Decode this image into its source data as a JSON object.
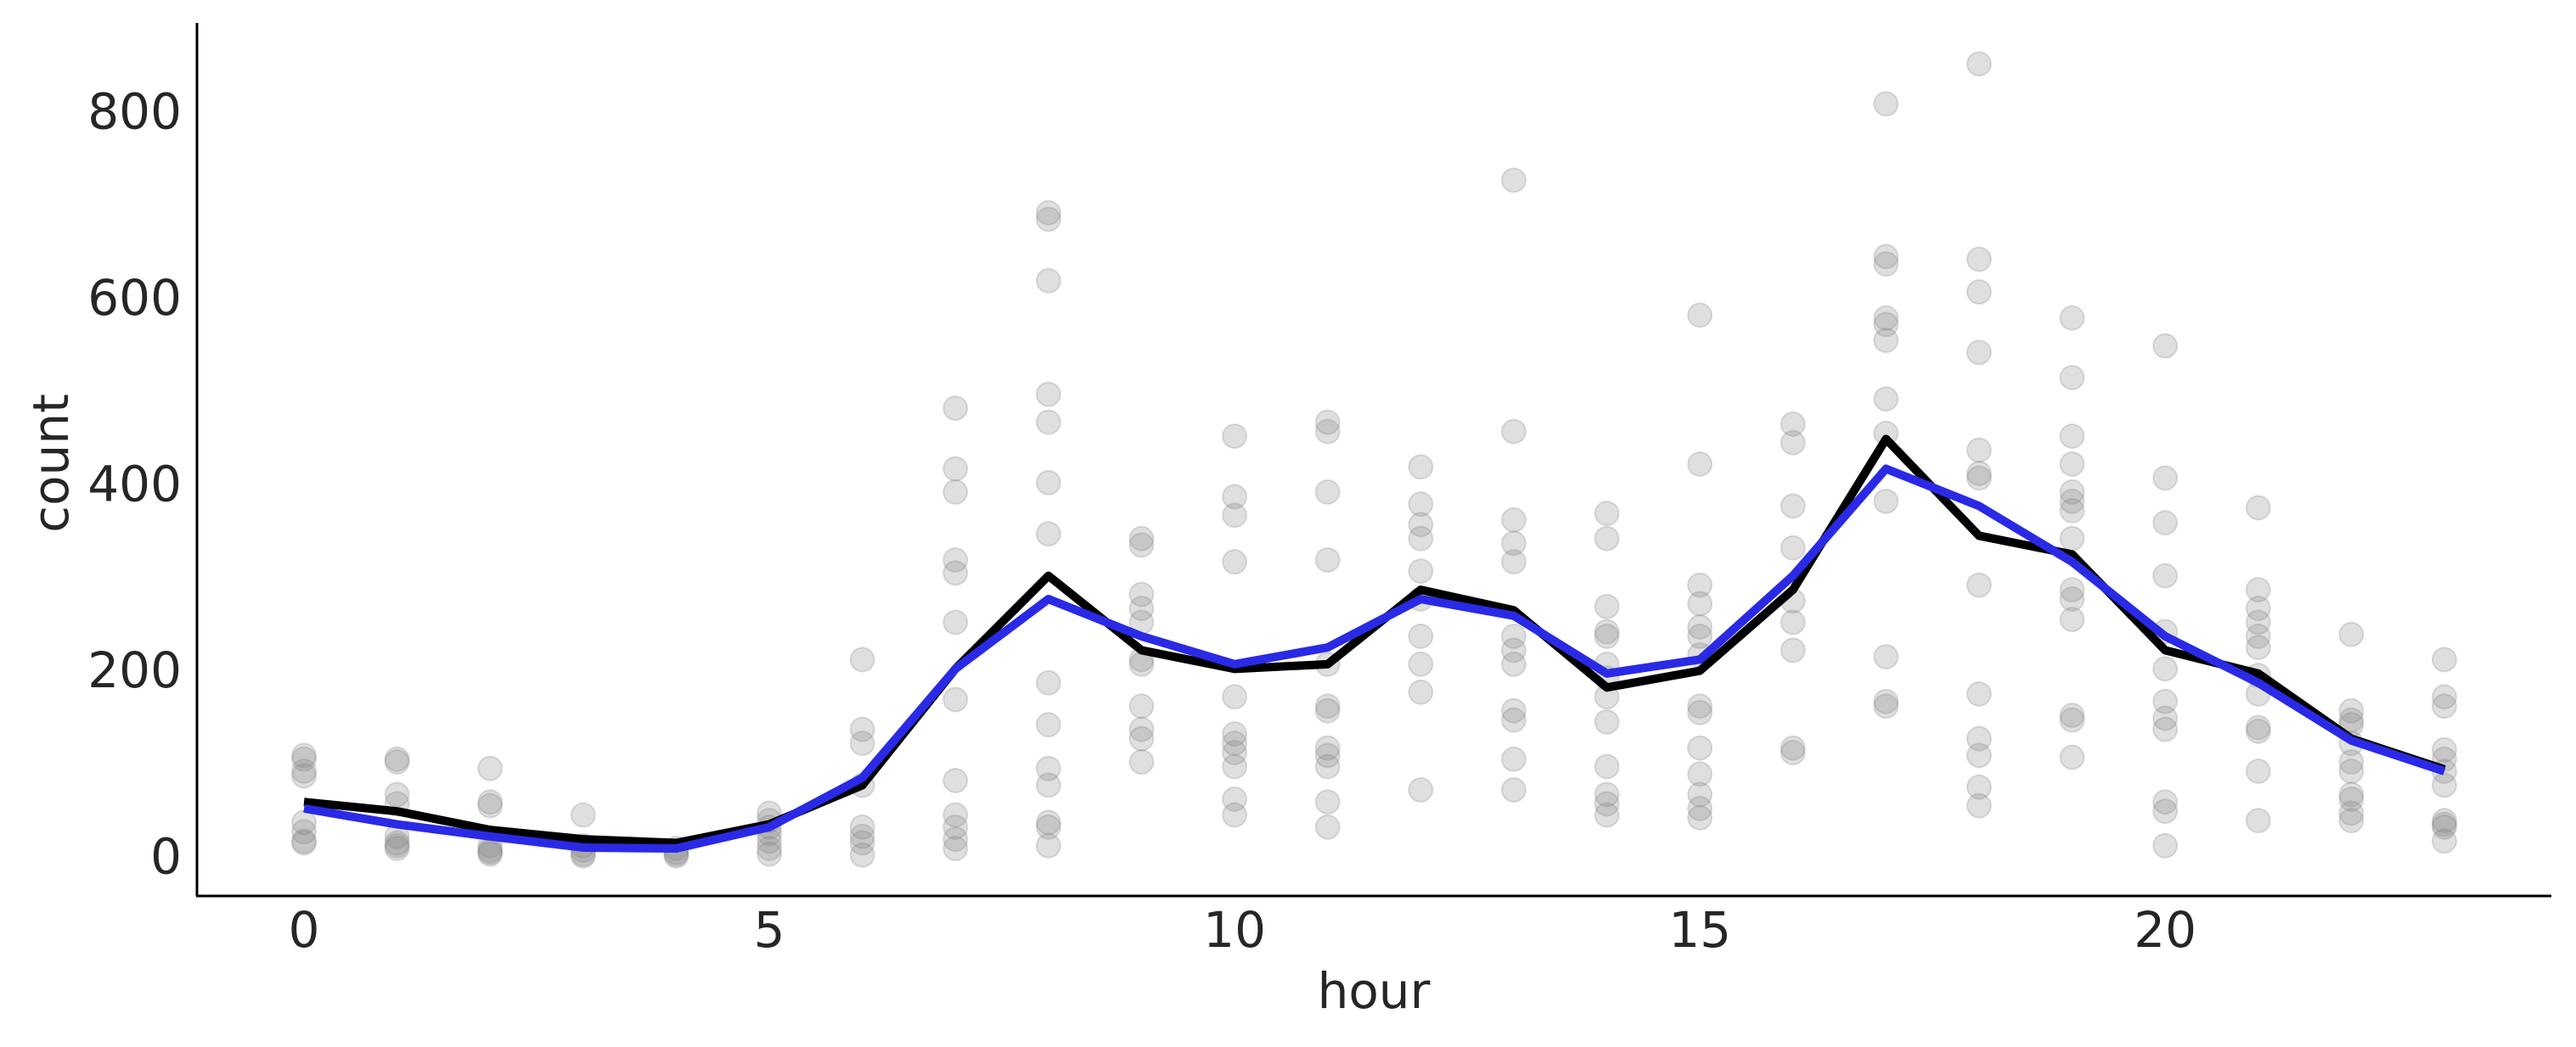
{
  "chart_data": {
    "type": "scatter",
    "x_label": "hour",
    "y_label": "count",
    "xlim": [
      -1.15,
      24.15
    ],
    "ylim": [
      -39,
      899
    ],
    "xticks": [
      0,
      5,
      10,
      15,
      20
    ],
    "yticks": [
      0,
      200,
      400,
      600,
      800
    ],
    "grid": false,
    "series": [
      {
        "type": "scatter",
        "color": "#808080",
        "x": [
          0,
          0,
          0,
          0,
          0,
          0,
          0,
          0,
          1,
          1,
          1,
          1,
          1,
          1,
          1,
          1,
          2,
          2,
          2,
          2,
          2,
          2,
          2,
          3,
          3,
          3,
          3,
          3,
          4,
          4,
          4,
          4,
          5,
          5,
          5,
          5,
          5,
          5,
          5,
          6,
          6,
          6,
          6,
          6,
          6,
          6,
          6,
          7,
          7,
          7,
          7,
          7,
          7,
          7,
          7,
          7,
          7,
          7,
          7,
          8,
          8,
          8,
          8,
          8,
          8,
          8,
          8,
          8,
          8,
          8,
          8,
          8,
          8,
          9,
          9,
          9,
          9,
          9,
          9,
          9,
          9,
          9,
          9,
          9,
          10,
          10,
          10,
          10,
          10,
          10,
          10,
          10,
          10,
          10,
          10,
          11,
          11,
          11,
          11,
          11,
          11,
          11,
          11,
          11,
          11,
          11,
          11,
          12,
          12,
          12,
          12,
          12,
          12,
          12,
          12,
          12,
          12,
          13,
          13,
          13,
          13,
          13,
          13,
          13,
          13,
          13,
          13,
          13,
          13,
          14,
          14,
          14,
          14,
          14,
          14,
          14,
          14,
          14,
          14,
          14,
          14,
          14,
          15,
          15,
          15,
          15,
          15,
          15,
          15,
          15,
          15,
          15,
          15,
          15,
          15,
          15,
          16,
          16,
          16,
          16,
          16,
          16,
          16,
          16,
          16,
          17,
          17,
          17,
          17,
          17,
          17,
          17,
          17,
          17,
          17,
          17,
          17,
          18,
          18,
          18,
          18,
          18,
          18,
          18,
          18,
          18,
          18,
          18,
          18,
          18,
          19,
          19,
          19,
          19,
          19,
          19,
          19,
          19,
          19,
          19,
          19,
          19,
          19,
          19,
          20,
          20,
          20,
          20,
          20,
          20,
          20,
          20,
          20,
          20,
          20,
          20,
          21,
          21,
          21,
          21,
          21,
          21,
          21,
          21,
          21,
          21,
          21,
          21,
          22,
          22,
          22,
          22,
          22,
          22,
          22,
          22,
          22,
          22,
          22,
          23,
          23,
          23,
          23,
          23,
          23,
          23,
          23,
          23,
          23,
          23
        ],
        "values": [
          112,
          108,
          95,
          90,
          40,
          30,
          20,
          18,
          108,
          105,
          70,
          60,
          25,
          18,
          15,
          12,
          98,
          62,
          58,
          15,
          10,
          8,
          6,
          48,
          15,
          10,
          6,
          4,
          12,
          8,
          6,
          4,
          50,
          42,
          35,
          28,
          20,
          12,
          6,
          215,
          140,
          125,
          80,
          35,
          25,
          18,
          5,
          485,
          420,
          395,
          322,
          308,
          255,
          172,
          85,
          48,
          35,
          22,
          12,
          695,
          688,
          622,
          500,
          470,
          405,
          350,
          190,
          145,
          98,
          80,
          40,
          35,
          15,
          345,
          338,
          285,
          270,
          255,
          215,
          210,
          165,
          140,
          130,
          105,
          455,
          390,
          370,
          320,
          175,
          135,
          125,
          115,
          100,
          65,
          48,
          470,
          460,
          395,
          322,
          210,
          165,
          160,
          120,
          112,
          100,
          62,
          35,
          422,
          382,
          360,
          345,
          310,
          280,
          240,
          210,
          180,
          75,
          730,
          460,
          365,
          340,
          320,
          240,
          225,
          210,
          160,
          150,
          108,
          75,
          372,
          345,
          272,
          245,
          240,
          210,
          195,
          175,
          148,
          100,
          70,
          60,
          48,
          585,
          425,
          295,
          275,
          250,
          240,
          220,
          165,
          158,
          120,
          92,
          70,
          55,
          45,
          468,
          448,
          380,
          335,
          278,
          255,
          225,
          120,
          115,
          812,
          648,
          640,
          582,
          575,
          558,
          495,
          458,
          385,
          218,
          170,
          165,
          855,
          645,
          610,
          545,
          440,
          415,
          410,
          295,
          178,
          130,
          112,
          78,
          58,
          582,
          518,
          455,
          425,
          395,
          385,
          375,
          345,
          290,
          280,
          258,
          155,
          150,
          110,
          552,
          410,
          362,
          305,
          245,
          205,
          170,
          152,
          140,
          62,
          52,
          15,
          378,
          290,
          270,
          255,
          240,
          228,
          198,
          178,
          142,
          138,
          95,
          42,
          242,
          160,
          150,
          145,
          125,
          105,
          95,
          70,
          65,
          50,
          42,
          215,
          175,
          165,
          118,
          108,
          95,
          80,
          42,
          38,
          35,
          20
        ]
      },
      {
        "type": "line",
        "color": "#000000",
        "x": [
          0,
          1,
          2,
          3,
          4,
          5,
          6,
          7,
          8,
          9,
          10,
          11,
          12,
          13,
          14,
          15,
          16,
          17,
          18,
          19,
          20,
          21,
          22,
          23
        ],
        "values": [
          62,
          52,
          32,
          22,
          18,
          38,
          80,
          205,
          305,
          225,
          205,
          210,
          290,
          268,
          185,
          203,
          290,
          452,
          348,
          328,
          225,
          200,
          130,
          97
        ]
      },
      {
        "type": "line",
        "color": "#2a2ae6",
        "x": [
          0,
          1,
          2,
          3,
          4,
          5,
          6,
          7,
          8,
          9,
          10,
          11,
          12,
          13,
          14,
          15,
          16,
          17,
          18,
          19,
          20,
          21,
          22,
          23
        ],
        "values": [
          55,
          38,
          25,
          13,
          12,
          35,
          88,
          205,
          280,
          240,
          210,
          228,
          280,
          262,
          200,
          215,
          305,
          420,
          380,
          320,
          240,
          190,
          128,
          95
        ]
      }
    ]
  }
}
